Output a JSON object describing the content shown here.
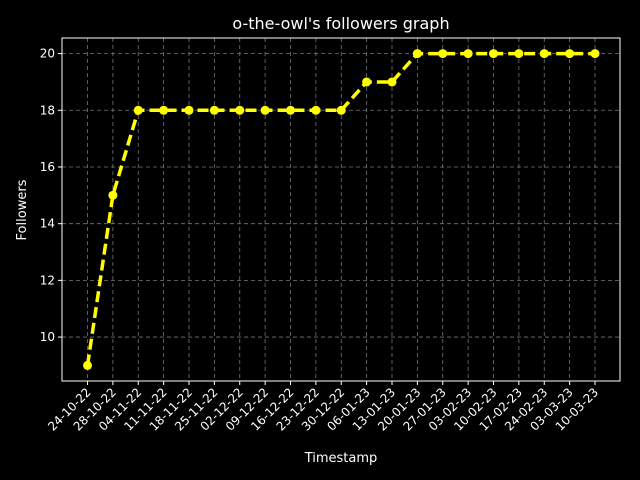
{
  "chart_data": {
    "type": "line",
    "title": "o-the-owl's followers graph",
    "xlabel": "Timestamp",
    "ylabel": "Followers",
    "categories": [
      "24-10-22",
      "28-10-22",
      "04-11-22",
      "11-11-22",
      "18-11-22",
      "25-11-22",
      "02-12-22",
      "09-12-22",
      "16-12-22",
      "23-12-22",
      "30-12-22",
      "06-01-23",
      "13-01-23",
      "20-01-23",
      "27-01-23",
      "03-02-23",
      "10-02-23",
      "17-02-23",
      "24-02-23",
      "03-03-23",
      "10-03-23"
    ],
    "series": [
      {
        "values": [
          9,
          15,
          18,
          18,
          18,
          18,
          18,
          18,
          18,
          18,
          18,
          19,
          19,
          20,
          20,
          20,
          20,
          20,
          20,
          20,
          20
        ],
        "color": "#ffff00"
      }
    ],
    "ylim": [
      8.45,
      20.55
    ],
    "yticks": [
      10,
      12,
      14,
      16,
      18,
      20
    ],
    "grid": true,
    "line_style": "dashed",
    "marker": "circle",
    "background": "#000000",
    "foreground": "#ffffff"
  }
}
